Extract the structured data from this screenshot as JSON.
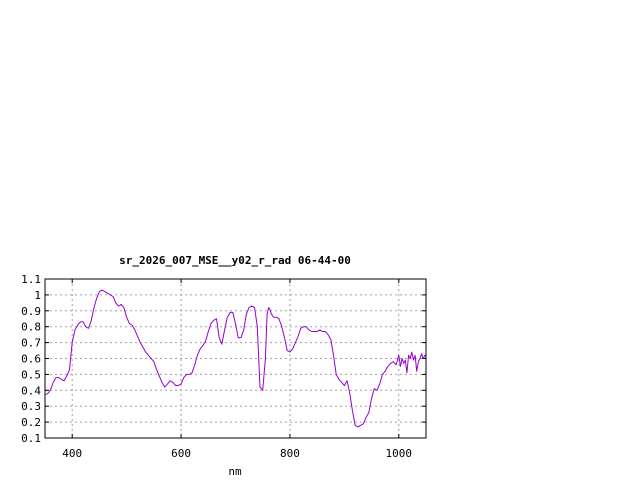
{
  "chart_data": {
    "type": "line",
    "title": "sr_2026_007_MSE__y02_r_rad 06-44-00",
    "xlabel": "nm",
    "ylabel": "",
    "xlim": [
      350,
      1050
    ],
    "ylim": [
      0.1,
      1.1
    ],
    "xticks": [
      "400",
      "600",
      "800",
      "1000"
    ],
    "xtick_values": [
      400,
      600,
      800,
      1000
    ],
    "yticks": [
      "0.1",
      "0.2",
      "0.3",
      "0.4",
      "0.5",
      "0.6",
      "0.7",
      "0.8",
      "0.9",
      "1",
      "1.1"
    ],
    "ytick_values": [
      0.1,
      0.2,
      0.3,
      0.4,
      0.5,
      0.6,
      0.7,
      0.8,
      0.9,
      1.0,
      1.1
    ],
    "grid": true,
    "legend": "none",
    "series": [
      {
        "color": "#9400d3",
        "x": [
          350,
          355,
          360,
          365,
          370,
          375,
          380,
          385,
          390,
          395,
          400,
          405,
          410,
          415,
          420,
          425,
          430,
          435,
          440,
          445,
          450,
          455,
          460,
          465,
          470,
          475,
          480,
          485,
          490,
          495,
          500,
          505,
          510,
          515,
          520,
          525,
          530,
          535,
          540,
          545,
          550,
          555,
          560,
          565,
          570,
          575,
          580,
          585,
          590,
          595,
          600,
          605,
          610,
          615,
          620,
          625,
          630,
          635,
          640,
          645,
          650,
          655,
          660,
          665,
          670,
          675,
          680,
          685,
          690,
          695,
          700,
          705,
          710,
          715,
          720,
          725,
          730,
          735,
          740,
          745,
          750,
          755,
          758,
          761,
          763,
          766,
          770,
          775,
          780,
          785,
          790,
          795,
          800,
          805,
          810,
          815,
          820,
          825,
          830,
          835,
          840,
          845,
          850,
          855,
          860,
          865,
          870,
          875,
          880,
          885,
          890,
          895,
          900,
          905,
          910,
          915,
          920,
          925,
          930,
          935,
          940,
          945,
          950,
          955,
          960,
          965,
          970,
          975,
          980,
          985,
          990,
          995,
          1000,
          1003,
          1006,
          1009,
          1012,
          1015,
          1018,
          1021,
          1024,
          1027,
          1030,
          1033,
          1036,
          1039,
          1042,
          1045,
          1048,
          1050
        ],
        "y": [
          0.37,
          0.38,
          0.4,
          0.45,
          0.48,
          0.48,
          0.47,
          0.46,
          0.49,
          0.53,
          0.7,
          0.78,
          0.81,
          0.83,
          0.83,
          0.8,
          0.79,
          0.84,
          0.92,
          0.98,
          1.02,
          1.03,
          1.02,
          1.01,
          1.0,
          0.99,
          0.95,
          0.93,
          0.94,
          0.92,
          0.86,
          0.82,
          0.81,
          0.78,
          0.74,
          0.7,
          0.67,
          0.64,
          0.62,
          0.6,
          0.58,
          0.53,
          0.49,
          0.45,
          0.42,
          0.44,
          0.46,
          0.45,
          0.43,
          0.43,
          0.44,
          0.48,
          0.5,
          0.5,
          0.51,
          0.56,
          0.62,
          0.66,
          0.68,
          0.71,
          0.77,
          0.82,
          0.84,
          0.85,
          0.73,
          0.69,
          0.78,
          0.86,
          0.89,
          0.89,
          0.82,
          0.73,
          0.73,
          0.78,
          0.88,
          0.92,
          0.93,
          0.92,
          0.8,
          0.42,
          0.4,
          0.6,
          0.88,
          0.92,
          0.91,
          0.88,
          0.86,
          0.86,
          0.85,
          0.8,
          0.73,
          0.65,
          0.64,
          0.66,
          0.7,
          0.74,
          0.79,
          0.8,
          0.8,
          0.78,
          0.77,
          0.77,
          0.77,
          0.78,
          0.77,
          0.77,
          0.75,
          0.72,
          0.62,
          0.5,
          0.47,
          0.45,
          0.43,
          0.46,
          0.38,
          0.27,
          0.18,
          0.17,
          0.18,
          0.19,
          0.23,
          0.26,
          0.35,
          0.41,
          0.4,
          0.44,
          0.5,
          0.52,
          0.55,
          0.57,
          0.58,
          0.56,
          0.62,
          0.55,
          0.6,
          0.57,
          0.59,
          0.51,
          0.62,
          0.6,
          0.64,
          0.59,
          0.62,
          0.52,
          0.58,
          0.6,
          0.63,
          0.6,
          0.62,
          0.61
        ]
      }
    ]
  }
}
